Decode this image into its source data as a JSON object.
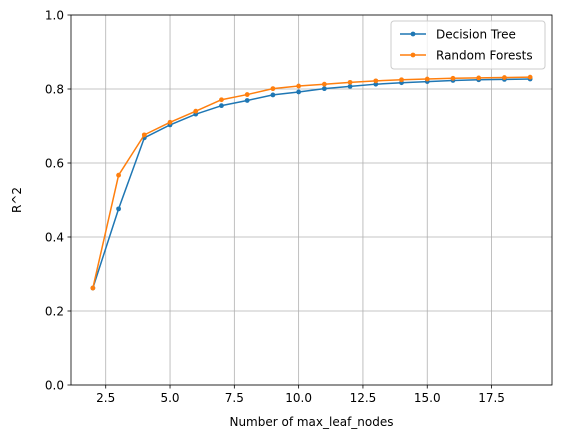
{
  "chart_data": {
    "type": "line",
    "title": "",
    "xlabel": "Number of max_leaf_nodes",
    "ylabel": "R^2",
    "xlim": [
      1.15,
      19.85
    ],
    "ylim": [
      0,
      1
    ],
    "xticks": [
      2.5,
      5.0,
      7.5,
      10.0,
      12.5,
      15.0,
      17.5
    ],
    "xtick_labels": [
      "2.5",
      "5.0",
      "7.5",
      "10.0",
      "12.5",
      "15.0",
      "17.5"
    ],
    "yticks": [
      0.0,
      0.2,
      0.4,
      0.6,
      0.8,
      1.0
    ],
    "ytick_labels": [
      "0.0",
      "0.2",
      "0.4",
      "0.6",
      "0.8",
      "1.0"
    ],
    "grid": true,
    "legend_position": "top-right",
    "x": [
      2,
      3,
      4,
      5,
      6,
      7,
      8,
      9,
      10,
      11,
      12,
      13,
      14,
      15,
      16,
      17,
      18,
      19
    ],
    "series": [
      {
        "name": "Decision Tree",
        "color": "#1f77b4",
        "values": [
          0.262,
          0.476,
          0.668,
          0.703,
          0.732,
          0.755,
          0.769,
          0.784,
          0.792,
          0.801,
          0.807,
          0.813,
          0.817,
          0.82,
          0.823,
          0.825,
          0.826,
          0.827
        ]
      },
      {
        "name": "Random Forests",
        "color": "#ff7f0e",
        "values": [
          0.262,
          0.567,
          0.676,
          0.71,
          0.74,
          0.771,
          0.785,
          0.801,
          0.808,
          0.813,
          0.818,
          0.822,
          0.825,
          0.827,
          0.829,
          0.83,
          0.831,
          0.832
        ]
      }
    ]
  }
}
